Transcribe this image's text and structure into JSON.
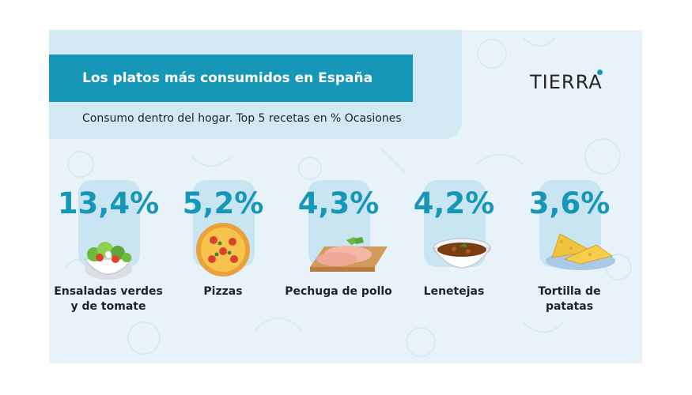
{
  "header": {
    "title": "Los platos más consumidos en España",
    "subtitle": "Consumo dentro del hogar. Top 5 recetas en % Ocasiones"
  },
  "brand": {
    "logo": "TIERRA",
    "accent_color": "#1797b8"
  },
  "chart_data": {
    "type": "bar",
    "title": "Los platos más consumidos en España",
    "subtitle": "Consumo dentro del hogar. Top 5 recetas en % Ocasiones",
    "unit": "% Ocasiones",
    "categories": [
      "Ensaladas verdes y de tomate",
      "Pizzas",
      "Pechuga de pollo",
      "Lenetejas",
      "Tortilla de patatas"
    ],
    "values": [
      13.4,
      5.2,
      4.3,
      4.2,
      3.6
    ],
    "value_labels": [
      "13,4%",
      "5,2%",
      "4,3%",
      "4,2%",
      "3,6%"
    ],
    "label_lines": [
      [
        "Ensaladas verdes",
        "y de tomate"
      ],
      [
        "Pizzas"
      ],
      [
        "Pechuga de pollo"
      ],
      [
        "Lenetejas"
      ],
      [
        "Tortilla de",
        "patatas"
      ]
    ],
    "icons": [
      "salad-bowl-icon",
      "pizza-icon",
      "chicken-breast-icon",
      "lentil-soup-icon",
      "potato-omelette-icon"
    ]
  }
}
